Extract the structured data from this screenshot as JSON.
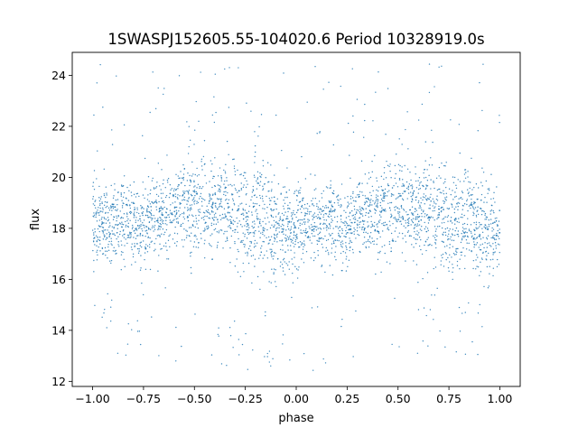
{
  "chart_data": {
    "type": "scatter",
    "title": "1SWASPJ152605.55-104020.6 Period 10328919.0s",
    "xlabel": "phase",
    "ylabel": "flux",
    "xlim": [
      -1.1,
      1.1
    ],
    "ylim": [
      11.8,
      24.9
    ],
    "xticks": [
      -1.0,
      -0.75,
      -0.5,
      -0.25,
      0.0,
      0.25,
      0.5,
      0.75,
      1.0
    ],
    "xtick_labels": [
      "−1.00",
      "−0.75",
      "−0.50",
      "−0.25",
      "0.00",
      "0.25",
      "0.50",
      "0.75",
      "1.00"
    ],
    "yticks": [
      12,
      14,
      16,
      18,
      20,
      22,
      24
    ],
    "ytick_labels": [
      "12",
      "14",
      "16",
      "18",
      "20",
      "22",
      "24"
    ],
    "grid": false,
    "legend": "none",
    "marker_color": "#1f77b4",
    "series_profile": {
      "phase": [
        0.0,
        0.05,
        0.1,
        0.15,
        0.2,
        0.25,
        0.3,
        0.35,
        0.4,
        0.45,
        0.5,
        0.55,
        0.6,
        0.65,
        0.7,
        0.75,
        0.8,
        0.85,
        0.9,
        0.95,
        1.0
      ],
      "median_flux": [
        18.3,
        18.2,
        18.1,
        18.3,
        18.2,
        18.0,
        18.5,
        18.6,
        18.7,
        18.8,
        19.0,
        18.8,
        18.7,
        18.9,
        18.6,
        18.5,
        18.3,
        18.4,
        18.0,
        17.9,
        17.8
      ],
      "band_low": [
        16.3,
        16.6,
        16.7,
        16.6,
        16.6,
        16.4,
        17.0,
        17.2,
        17.0,
        16.9,
        17.0,
        16.8,
        16.8,
        16.9,
        16.6,
        16.6,
        16.3,
        16.4,
        16.3,
        16.3,
        16.5
      ],
      "band_high": [
        20.0,
        19.5,
        19.6,
        19.8,
        19.7,
        19.5,
        20.0,
        20.3,
        20.2,
        20.5,
        21.0,
        20.6,
        20.3,
        20.7,
        20.5,
        20.4,
        20.7,
        20.4,
        19.9,
        19.8,
        19.5
      ]
    }
  }
}
